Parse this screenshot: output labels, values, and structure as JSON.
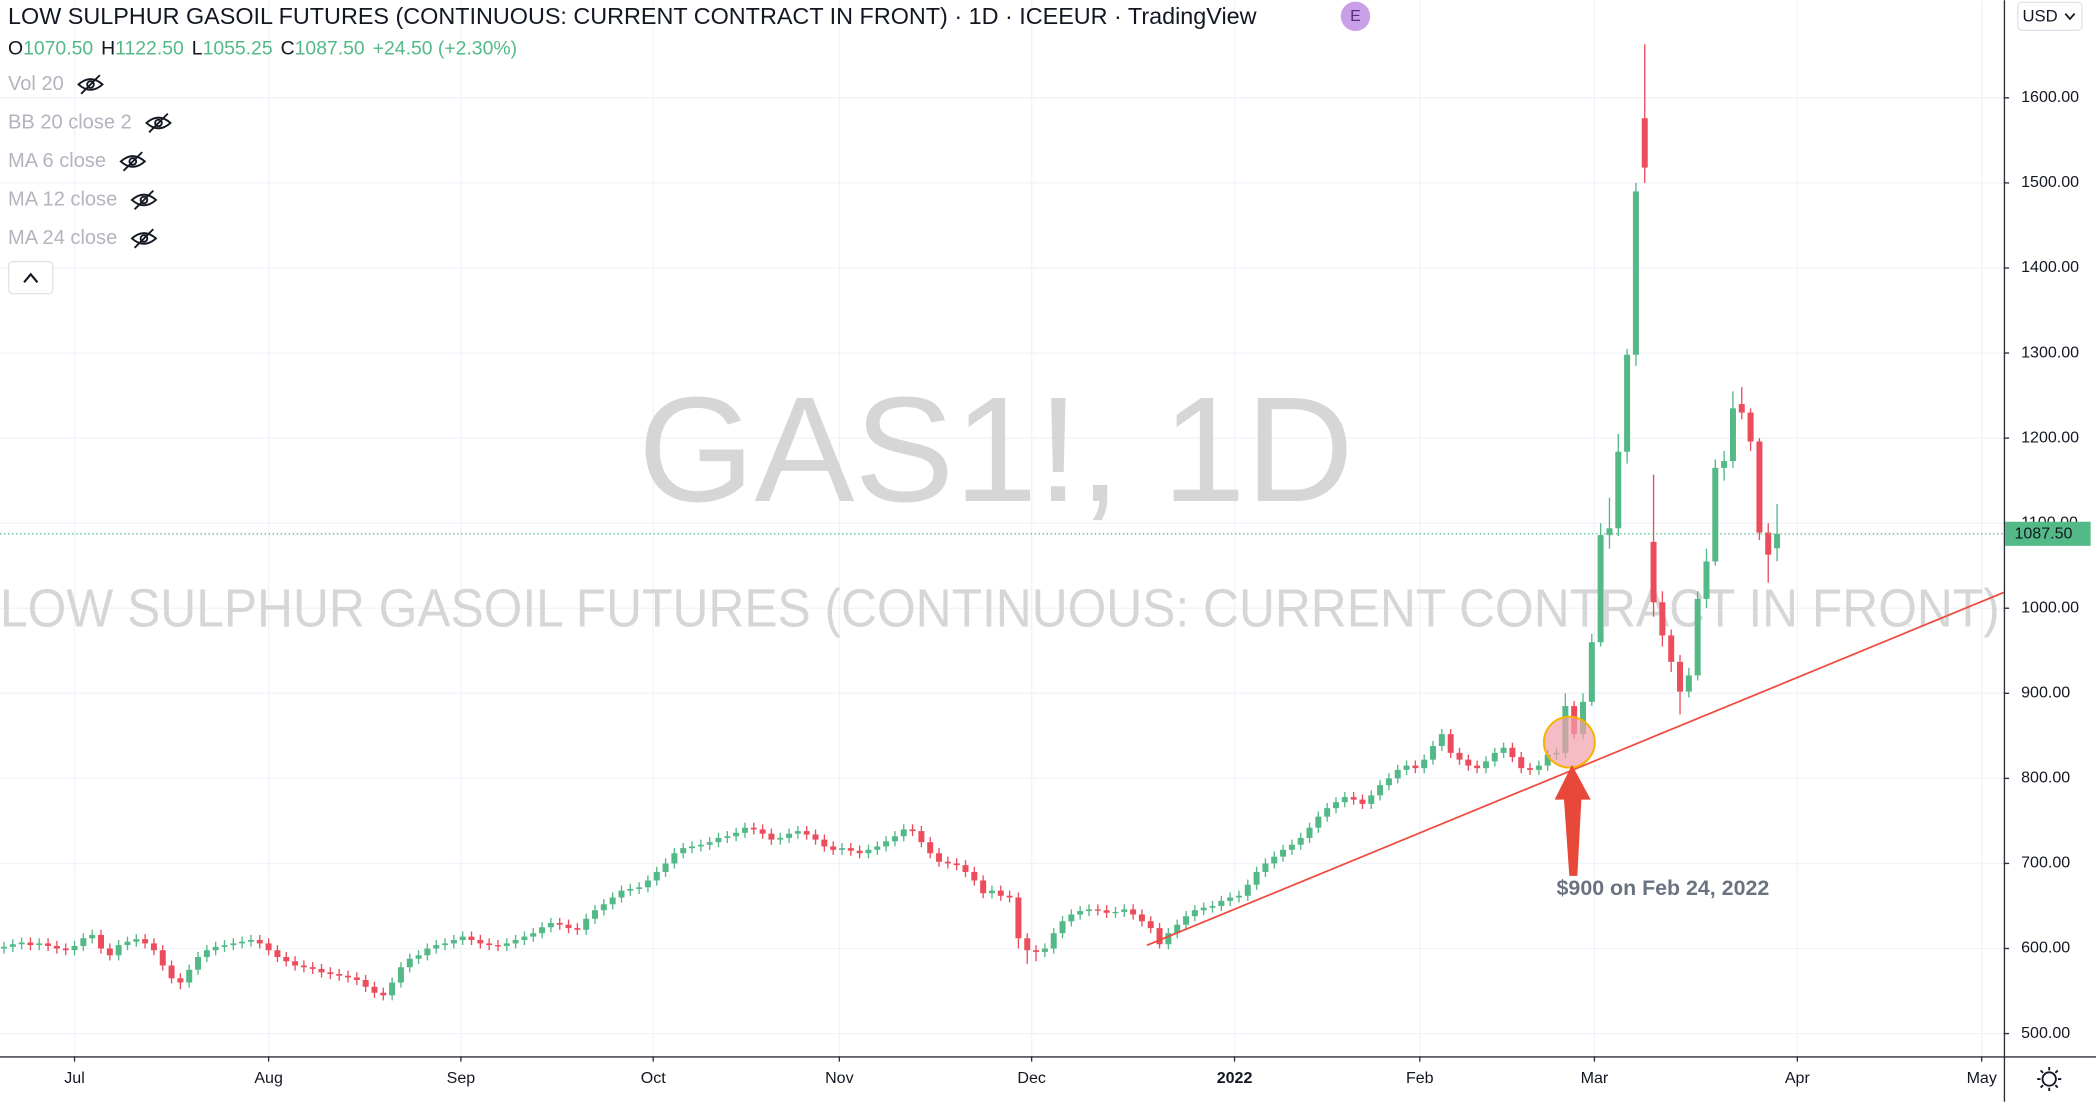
{
  "chart_data": {
    "type": "candlestick",
    "title": "LOW SULPHUR GASOIL FUTURES (CONTINUOUS: CURRENT CONTRACT IN FRONT) · 1D · ICEEUR · TradingView",
    "badge": "E",
    "ohlc_legend": [
      {
        "key": "O",
        "value": "1070.50"
      },
      {
        "key": "H",
        "value": "1122.50"
      },
      {
        "key": "L",
        "value": "1055.25"
      },
      {
        "key": "C",
        "value": "1087.50"
      }
    ],
    "change": "+24.50 (+2.30%)",
    "indicators": [
      "Vol 20",
      "BB 20 close 2",
      "MA 6 close",
      "MA 12 close",
      "MA 24 close"
    ],
    "watermark": "GAS1!, 1D",
    "watermark_subtitle": "LOW SULPHUR GASOIL FUTURES (CONTINUOUS: CURRENT CONTRACT IN FRONT)",
    "annotation": "$900 on Feb 24, 2022",
    "currency": "USD",
    "up_color": "#53b987",
    "down_color": "#eb4d5c",
    "grid": true,
    "last_price": {
      "value": 1087.5,
      "label": "1087.50"
    },
    "ylim": [
      473.3,
      1714.7
    ],
    "yticks": [
      {
        "value": 500,
        "label": "500.00"
      },
      {
        "value": 600,
        "label": "600.00"
      },
      {
        "value": 700,
        "label": "700.00"
      },
      {
        "value": 800,
        "label": "800.00"
      },
      {
        "value": 900,
        "label": "900.00"
      },
      {
        "value": 1000,
        "label": "1000.00"
      },
      {
        "value": 1100,
        "label": "1100.00"
      },
      {
        "value": 1200,
        "label": "1200.00"
      },
      {
        "value": 1300,
        "label": "1300.00"
      },
      {
        "value": 1400,
        "label": "1400.00"
      },
      {
        "value": 1500,
        "label": "1500.00"
      },
      {
        "value": 1600,
        "label": "1600.00"
      }
    ],
    "xlim": [
      -0.45,
      226.7
    ],
    "xticks": [
      {
        "value": 8,
        "label": "Jul"
      },
      {
        "value": 30,
        "label": "Aug"
      },
      {
        "value": 51.8,
        "label": "Sep"
      },
      {
        "value": 73.6,
        "label": "Oct"
      },
      {
        "value": 94.7,
        "label": "Nov"
      },
      {
        "value": 116.5,
        "label": "Dec"
      },
      {
        "value": 139.5,
        "label": "2022"
      },
      {
        "value": 160.5,
        "label": "Feb"
      },
      {
        "value": 180.3,
        "label": "Mar"
      },
      {
        "value": 203.3,
        "label": "Apr"
      },
      {
        "value": 224.2,
        "label": "May"
      }
    ],
    "open": [
      600,
      602,
      605,
      607,
      604,
      606,
      603,
      600,
      598,
      603,
      612,
      616,
      600,
      592,
      604,
      608,
      611,
      606,
      598,
      580,
      565,
      560,
      575,
      590,
      598,
      602,
      604,
      606,
      608,
      610,
      606,
      598,
      590,
      585,
      580,
      578,
      576,
      572,
      570,
      568,
      566,
      563,
      555,
      548,
      545,
      560,
      578,
      588,
      592,
      600,
      604,
      606,
      610,
      614,
      610,
      606,
      604,
      603,
      606,
      610,
      614,
      618,
      625,
      630,
      628,
      624,
      622,
      635,
      645,
      652,
      660,
      668,
      670,
      672,
      680,
      690,
      700,
      712,
      718,
      720,
      722,
      725,
      730,
      732,
      736,
      742,
      740,
      735,
      728,
      730,
      735,
      738,
      734,
      728,
      720,
      716,
      718,
      715,
      712,
      716,
      720,
      726,
      732,
      740,
      738,
      725,
      712,
      702,
      700,
      698,
      690,
      680,
      665,
      668,
      662,
      660,
      612,
      598,
      596,
      600,
      618,
      632,
      640,
      644,
      646,
      645,
      642,
      643,
      646,
      640,
      632,
      624,
      605,
      618,
      628,
      638,
      645,
      648,
      650,
      656,
      660,
      662,
      675,
      690,
      700,
      708,
      716,
      722,
      730,
      742,
      755,
      765,
      772,
      778,
      775,
      770,
      780,
      792,
      800,
      810,
      815,
      812,
      822,
      838,
      852,
      830,
      822,
      815,
      812,
      820,
      830,
      836,
      825,
      812,
      810,
      815,
      828,
      830,
      885,
      852,
      890,
      960,
      1086,
      1094,
      1184,
      1298,
      1576,
      1078,
      1007,
      968,
      937,
      902,
      921,
      1011,
      1055,
      1165,
      1173,
      1240,
      1230,
      1196,
      1089,
      1070.5
    ],
    "high": [
      608,
      611,
      613,
      613,
      612,
      612,
      609,
      606,
      609,
      618,
      622,
      622,
      606,
      610,
      614,
      617,
      617,
      612,
      604,
      586,
      571,
      581,
      596,
      604,
      608,
      610,
      612,
      614,
      616,
      616,
      612,
      604,
      596,
      591,
      586,
      584,
      582,
      578,
      576,
      574,
      572,
      569,
      561,
      554,
      566,
      584,
      594,
      598,
      606,
      610,
      612,
      616,
      620,
      620,
      616,
      612,
      610,
      612,
      616,
      620,
      624,
      631,
      636,
      636,
      634,
      630,
      641,
      651,
      658,
      666,
      674,
      676,
      678,
      686,
      696,
      706,
      718,
      724,
      726,
      728,
      731,
      736,
      738,
      742,
      748,
      748,
      746,
      741,
      736,
      741,
      744,
      744,
      740,
      734,
      726,
      724,
      724,
      721,
      722,
      726,
      732,
      738,
      746,
      746,
      744,
      731,
      718,
      708,
      706,
      704,
      696,
      686,
      674,
      674,
      668,
      666,
      618,
      604,
      606,
      624,
      638,
      646,
      650,
      652,
      652,
      651,
      649,
      652,
      652,
      646,
      638,
      630,
      624,
      634,
      644,
      651,
      654,
      656,
      662,
      666,
      668,
      681,
      696,
      706,
      714,
      722,
      728,
      736,
      748,
      761,
      771,
      778,
      784,
      784,
      781,
      786,
      798,
      806,
      816,
      821,
      821,
      828,
      844,
      858,
      858,
      836,
      828,
      821,
      826,
      836,
      842,
      842,
      831,
      818,
      821,
      834,
      836,
      900,
      891,
      900,
      970,
      1100,
      1130,
      1205,
      1305,
      1500,
      1663,
      1157,
      1020,
      975,
      945,
      930,
      1020,
      1070,
      1175,
      1185,
      1255,
      1260,
      1235,
      1200,
      1100,
      1122.5
    ],
    "low": [
      594,
      596,
      599,
      598,
      598,
      597,
      594,
      592,
      592,
      597,
      606,
      594,
      586,
      586,
      598,
      602,
      600,
      592,
      574,
      559,
      552,
      554,
      569,
      584,
      592,
      596,
      598,
      600,
      602,
      600,
      592,
      584,
      579,
      574,
      572,
      570,
      566,
      564,
      562,
      560,
      557,
      549,
      542,
      539,
      539,
      554,
      572,
      582,
      586,
      594,
      598,
      600,
      604,
      604,
      600,
      598,
      597,
      597,
      600,
      604,
      608,
      612,
      619,
      622,
      618,
      616,
      616,
      629,
      639,
      646,
      654,
      662,
      664,
      666,
      674,
      684,
      694,
      706,
      712,
      714,
      716,
      719,
      724,
      726,
      730,
      734,
      729,
      722,
      722,
      724,
      729,
      728,
      722,
      714,
      710,
      710,
      709,
      706,
      706,
      710,
      714,
      720,
      726,
      732,
      719,
      706,
      696,
      694,
      692,
      684,
      674,
      659,
      659,
      656,
      654,
      600,
      582,
      585,
      590,
      594,
      612,
      626,
      634,
      638,
      639,
      636,
      636,
      637,
      634,
      626,
      618,
      600,
      599,
      612,
      622,
      632,
      639,
      642,
      644,
      650,
      654,
      656,
      669,
      684,
      694,
      702,
      710,
      716,
      724,
      736,
      749,
      759,
      766,
      769,
      764,
      764,
      774,
      786,
      794,
      804,
      806,
      806,
      816,
      832,
      824,
      816,
      809,
      806,
      806,
      814,
      824,
      819,
      806,
      804,
      804,
      809,
      822,
      824,
      846,
      846,
      885,
      955,
      1070,
      1085,
      1170,
      1285,
      1500,
      990,
      955,
      925,
      875,
      895,
      915,
      1000,
      1050,
      1150,
      1165,
      1222,
      1185,
      1080,
      1030,
      1055.25
    ],
    "close": [
      602,
      605,
      607,
      604,
      606,
      603,
      600,
      598,
      603,
      612,
      616,
      600,
      592,
      604,
      608,
      611,
      606,
      598,
      580,
      565,
      560,
      575,
      590,
      598,
      602,
      604,
      606,
      608,
      610,
      606,
      598,
      590,
      585,
      580,
      578,
      576,
      572,
      570,
      568,
      566,
      563,
      555,
      548,
      545,
      560,
      578,
      588,
      592,
      600,
      604,
      606,
      610,
      614,
      610,
      606,
      604,
      603,
      606,
      610,
      614,
      618,
      625,
      630,
      628,
      624,
      622,
      635,
      645,
      652,
      660,
      668,
      670,
      672,
      680,
      690,
      700,
      712,
      718,
      720,
      722,
      725,
      730,
      732,
      736,
      742,
      740,
      735,
      728,
      730,
      735,
      738,
      734,
      728,
      720,
      716,
      718,
      715,
      712,
      716,
      720,
      726,
      732,
      740,
      738,
      725,
      712,
      702,
      700,
      698,
      690,
      680,
      665,
      668,
      662,
      660,
      612,
      598,
      596,
      600,
      618,
      632,
      640,
      644,
      646,
      645,
      642,
      643,
      646,
      640,
      632,
      624,
      605,
      618,
      628,
      638,
      645,
      648,
      650,
      656,
      660,
      662,
      675,
      690,
      700,
      708,
      716,
      722,
      730,
      742,
      755,
      765,
      772,
      778,
      775,
      770,
      780,
      792,
      800,
      810,
      815,
      812,
      822,
      838,
      852,
      830,
      822,
      815,
      812,
      820,
      830,
      836,
      825,
      812,
      810,
      815,
      828,
      830,
      885,
      852,
      890,
      960,
      1086,
      1094,
      1184,
      1298,
      1490,
      1518,
      1007,
      968,
      937,
      902,
      921,
      1011,
      1055,
      1165,
      1173,
      1235,
      1230,
      1196,
      1089,
      1063,
      1087.5
    ]
  }
}
